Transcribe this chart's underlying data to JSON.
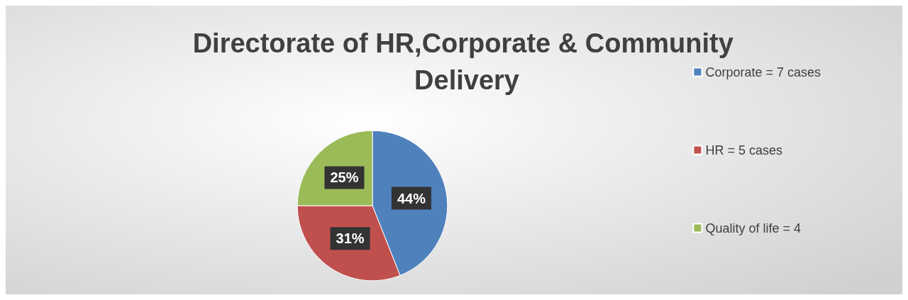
{
  "chart_data": {
    "type": "pie",
    "title": "Directorate of HR,Corporate & Community Delivery",
    "categories": [
      "Corporate = 7 cases",
      "HR = 5 cases",
      "Quality of life = 4"
    ],
    "values": [
      44,
      31,
      25
    ],
    "colors": [
      "#4f81bd",
      "#c0504d",
      "#9bbb59"
    ],
    "value_labels": [
      "44%",
      "31%",
      "25%"
    ],
    "legend": "right"
  }
}
